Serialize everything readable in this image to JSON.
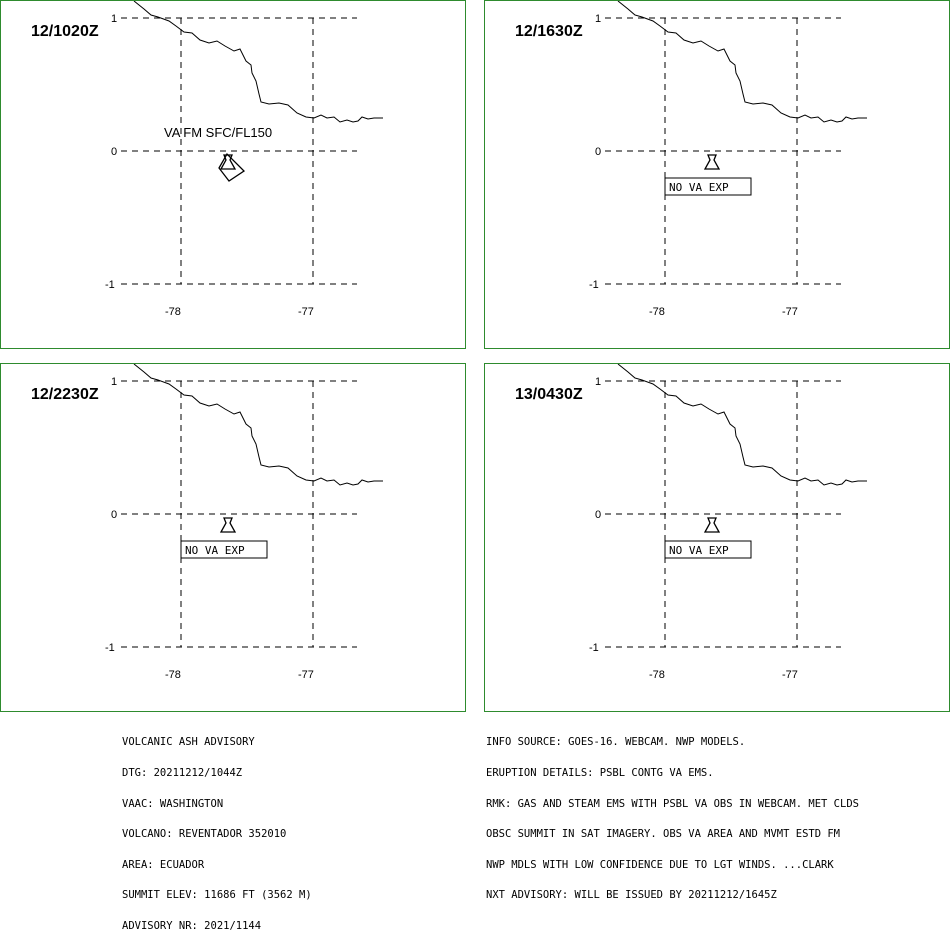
{
  "panels": [
    {
      "time": "12/1020Z",
      "annotation": "VA FM SFC/FL150",
      "status": "",
      "has_ash_polygon": true
    },
    {
      "time": "12/1630Z",
      "annotation": "",
      "status": "NO VA EXP",
      "has_ash_polygon": false
    },
    {
      "time": "12/2230Z",
      "annotation": "",
      "status": "NO VA EXP",
      "has_ash_polygon": false
    },
    {
      "time": "13/0430Z",
      "annotation": "",
      "status": "NO VA EXP",
      "has_ash_polygon": false
    }
  ],
  "axes": {
    "lon_ticks": [
      "-78",
      "-77"
    ],
    "lat_ticks": [
      "1",
      "0",
      "-1"
    ]
  },
  "advisory": {
    "left": [
      "VOLCANIC ASH ADVISORY",
      "DTG: 20211212/1044Z",
      "VAAC: WASHINGTON",
      "VOLCANO: REVENTADOR 352010",
      "AREA: ECUADOR",
      "SUMMIT ELEV: 11686 FT (3562 M)",
      "ADVISORY NR: 2021/1144"
    ],
    "right": [
      "INFO SOURCE: GOES-16. WEBCAM. NWP MODELS.",
      "ERUPTION DETAILS: PSBL CONTG VA EMS.",
      "RMK: GAS AND STEAM EMS WITH PSBL VA OBS IN WEBCAM. MET CLDS",
      "OBSC SUMMIT IN SAT IMAGERY. OBS VA AREA AND MVMT ESTD FM",
      "NWP MDLS WITH LOW CONFIDENCE DUE TO LGT WINDS. ...CLARK",
      "NXT ADVISORY: WILL BE ISSUED BY 20211212/1645Z"
    ]
  },
  "colors": {
    "panel_border": "#2e8b2e",
    "lines": "#000000"
  }
}
